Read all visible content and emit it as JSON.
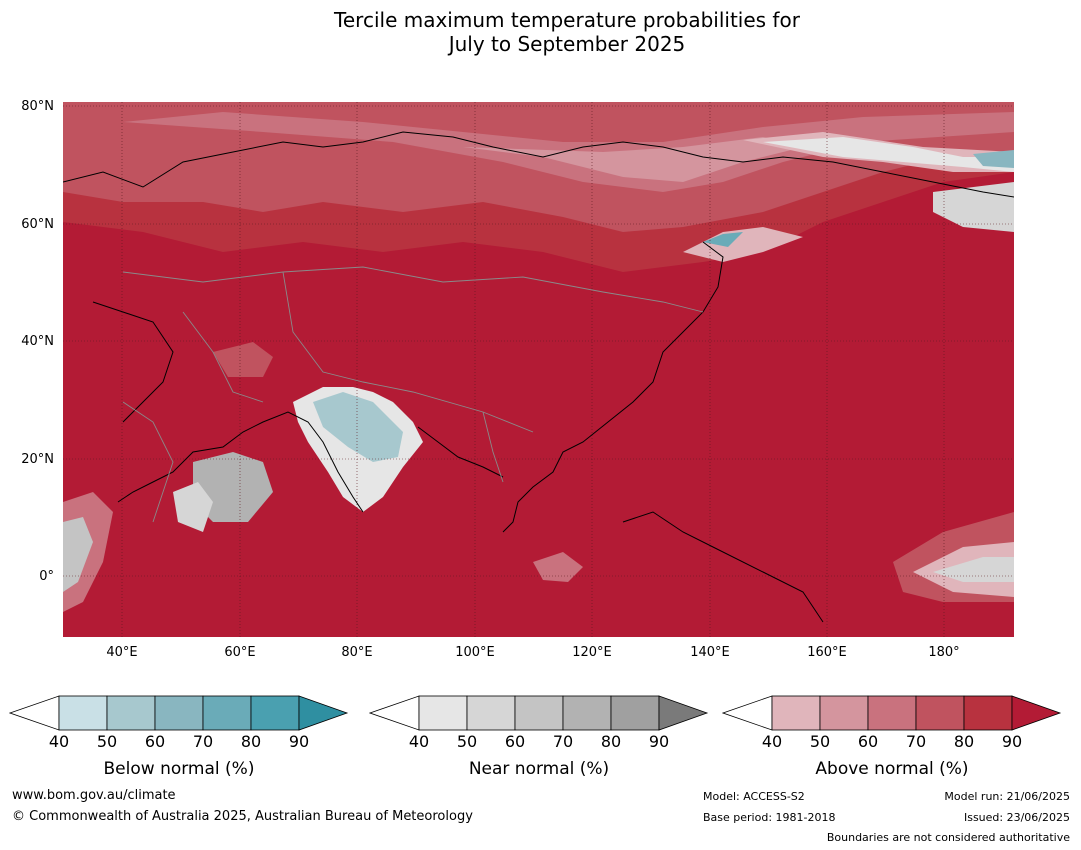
{
  "title": {
    "line1": "Tercile maximum temperature probabilities for",
    "line2": "July to September 2025"
  },
  "lat_ticks": [
    "80°N",
    "60°N",
    "40°N",
    "20°N",
    "0°"
  ],
  "lon_ticks": [
    "40°E",
    "60°E",
    "80°E",
    "100°E",
    "120°E",
    "140°E",
    "160°E",
    "180°"
  ],
  "colorbars": [
    {
      "title": "Below normal (%)",
      "ticks": [
        "40",
        "50",
        "60",
        "70",
        "80",
        "90"
      ],
      "colors": [
        "#ffffff",
        "#c9e0e6",
        "#a7c8ce",
        "#89b6c0",
        "#6aabb8",
        "#4aa0b0",
        "#2f8fa1"
      ]
    },
    {
      "title": "Near normal (%)",
      "ticks": [
        "40",
        "50",
        "60",
        "70",
        "80",
        "90"
      ],
      "colors": [
        "#ffffff",
        "#e6e6e6",
        "#d6d6d6",
        "#c4c4c4",
        "#b2b2b2",
        "#a0a0a0",
        "#7a7a7a"
      ]
    },
    {
      "title": "Above normal (%)",
      "ticks": [
        "40",
        "50",
        "60",
        "70",
        "80",
        "90"
      ],
      "colors": [
        "#ffffff",
        "#e0b5bb",
        "#d4959e",
        "#c9727e",
        "#c0535f",
        "#b8323f",
        "#b31b35"
      ]
    }
  ],
  "footer": {
    "website": "www.bom.gov.au/climate",
    "copyright": "© Commonwealth of Australia 2025, Australian Bureau of Meteorology",
    "model": "Model: ACCESS-S2",
    "base_period": "Base period: 1981-2018",
    "model_run": "Model run: 21/06/2025",
    "issued": "Issued: 23/06/2025",
    "boundaries": "Boundaries are not considered authoritative"
  }
}
